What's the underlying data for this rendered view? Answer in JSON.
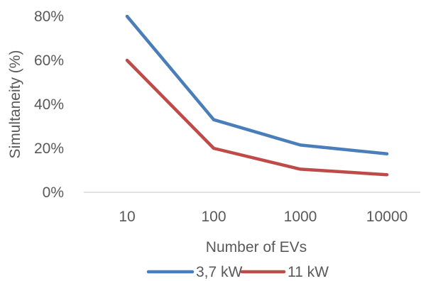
{
  "chart_data": {
    "type": "line",
    "categories": [
      "10",
      "100",
      "1000",
      "10000"
    ],
    "series": [
      {
        "name": "3,7 kW",
        "values": [
          80,
          33,
          21.5,
          17.5
        ],
        "color": "#4a7ebb"
      },
      {
        "name": "11 kW",
        "values": [
          60,
          20,
          10.5,
          8
        ],
        "color": "#be4b48"
      }
    ],
    "xlabel": "Number of EVs",
    "ylabel": "Simultaneity (%)",
    "ylim": [
      0,
      80
    ],
    "yticks": [
      "0%",
      "20%",
      "40%",
      "60%",
      "80%"
    ],
    "ytick_values": [
      0,
      20,
      40,
      60,
      80
    ],
    "grid": false,
    "legend_position": "bottom",
    "axis_color": "#d9d9d9",
    "text_color": "#595959"
  }
}
